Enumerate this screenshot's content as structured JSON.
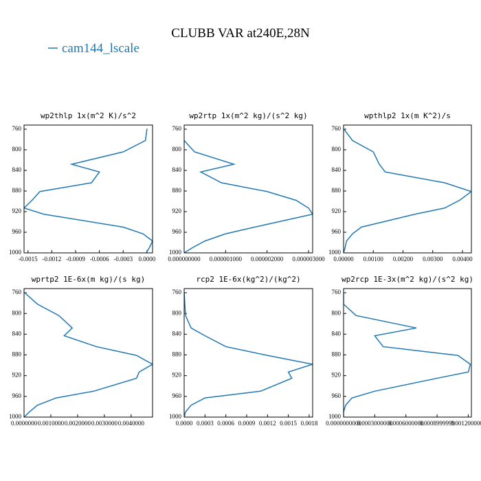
{
  "title": "CLUBB VAR at240E,28N",
  "chart_data": [
    {
      "type": "line",
      "title": "wp2thlp  1x(m^2 K)/s^2",
      "levels": [
        759,
        782,
        804,
        828,
        843,
        864,
        881,
        898,
        913,
        925,
        950,
        963,
        977,
        990,
        1000
      ],
      "series": [
        {
          "name": "cam144_lscale",
          "color": "#1f77b4",
          "values": [
            0.0,
            -2e-05,
            -0.0003,
            -0.00095,
            -0.0006,
            -0.0007,
            -0.00135,
            -0.00145,
            -0.00155,
            -0.0013,
            -0.0003,
            -5e-05,
            7e-05,
            3e-05,
            -1e-05
          ]
        }
      ],
      "xlim": [
        -0.00155,
        7e-05
      ],
      "xticks": [
        -0.0015,
        -0.0012,
        -0.0009,
        -0.0006,
        -0.0003,
        {
          "value": 0,
          "label": "0.0000"
        }
      ],
      "ylim": [
        1000,
        752
      ],
      "yticks": [
        760,
        800,
        840,
        880,
        920,
        960,
        1000
      ]
    },
    {
      "type": "line",
      "title": "wp2rtp  1x(m^2 kg)/(s^2 kg)",
      "levels": [
        759,
        782,
        804,
        828,
        843,
        864,
        881,
        898,
        913,
        925,
        950,
        963,
        977,
        990,
        1000
      ],
      "series": [
        {
          "color": "#1f77b4",
          "values": [
            null,
            0.0,
            2.5e-07,
            1.2e-06,
            4e-07,
            9e-07,
            2e-06,
            2.7e-06,
            3e-06,
            3.1e-06,
            1.7e-06,
            1e-06,
            5e-07,
            2e-07,
            0.0
          ]
        }
      ],
      "xlim": [
        0,
        3.1e-06
      ],
      "xticks": [
        {
          "value": 0,
          "label": "0.000000000"
        },
        {
          "value": 1e-06,
          "label": "0.000001000"
        },
        {
          "value": 2e-06,
          "label": "0.000002000"
        },
        {
          "value": 3e-06,
          "label": "0.000003000"
        }
      ],
      "ylim": [
        1000,
        752
      ],
      "yticks": [
        760,
        800,
        840,
        880,
        920,
        960,
        1000
      ]
    },
    {
      "type": "line",
      "title": "wpthlp2  1x(m K^2)/s",
      "levels": [
        759,
        782,
        804,
        828,
        843,
        864,
        881,
        898,
        913,
        925,
        950,
        963,
        977,
        990,
        1000
      ],
      "series": [
        {
          "color": "#1f77b4",
          "values": [
            0.0,
            0.0003,
            0.001,
            0.0012,
            0.0014,
            0.0034,
            0.0043,
            0.0039,
            0.0034,
            0.0024,
            0.0006,
            0.0003,
            0.0001,
            5e-05,
            0.0
          ]
        }
      ],
      "xlim": [
        0,
        0.0043
      ],
      "xticks": [
        {
          "value": 0,
          "label": "0.00000"
        },
        {
          "value": 0.001,
          "label": "0.00100"
        },
        {
          "value": 0.002,
          "label": "0.00200"
        },
        {
          "value": 0.003,
          "label": "0.00300"
        },
        {
          "value": 0.004,
          "label": "0.00400"
        }
      ],
      "ylim": [
        1000,
        752
      ],
      "yticks": [
        760,
        800,
        840,
        880,
        920,
        960,
        1000
      ]
    },
    {
      "type": "line",
      "title": "wprtp2  1E-6x(m kg)/(s kg)",
      "levels": [
        759,
        782,
        804,
        828,
        843,
        864,
        881,
        898,
        913,
        925,
        950,
        963,
        977,
        990,
        1000
      ],
      "series": [
        {
          "color": "#1f77b4",
          "values": [
            0.0,
            0.0005,
            0.0013,
            0.0018,
            0.0015,
            0.0027,
            0.0042,
            0.0048,
            0.0043,
            0.0042,
            0.0026,
            0.0012,
            0.0005,
            0.0002,
            0.0
          ]
        }
      ],
      "xlim": [
        0,
        0.0048
      ],
      "xticks": [
        {
          "value": 0,
          "label": "0.0000000"
        },
        {
          "value": 0.001,
          "label": "0.0010000"
        },
        {
          "value": 0.002,
          "label": "0.0020000"
        },
        {
          "value": 0.003,
          "label": "0.0030000"
        },
        {
          "value": 0.004,
          "label": "0.0040000"
        }
      ],
      "ylim": [
        1000,
        752
      ],
      "yticks": [
        760,
        800,
        840,
        880,
        920,
        960,
        1000
      ]
    },
    {
      "type": "line",
      "title": "rcp2  1E-6x(kg^2)/(kg^2)",
      "levels": [
        759,
        782,
        804,
        828,
        843,
        864,
        881,
        898,
        913,
        925,
        950,
        963,
        977,
        990,
        1000
      ],
      "series": [
        {
          "color": "#1f77b4",
          "values": [
            0.0,
            1e-05,
            2e-05,
            0.0001,
            0.0003,
            0.0006,
            0.0012,
            0.00185,
            0.0015,
            0.00155,
            0.0011,
            0.0003,
            0.0001,
            2e-05,
            0.0
          ]
        }
      ],
      "xlim": [
        0,
        0.00185
      ],
      "xticks": [
        {
          "value": 0,
          "label": "0.0000"
        },
        0.0003,
        0.0006,
        0.0009,
        0.0012,
        0.0015,
        0.0018
      ],
      "ylim": [
        1000,
        752
      ],
      "yticks": [
        760,
        800,
        840,
        880,
        920,
        960,
        1000
      ]
    },
    {
      "type": "line",
      "title": "wp2rcp  1E-3x(m^2 kg)/(s^2 kg)",
      "levels": [
        759,
        782,
        804,
        828,
        843,
        864,
        881,
        898,
        913,
        925,
        950,
        963,
        977,
        990,
        1000
      ],
      "series": [
        {
          "color": "#1f77b4",
          "values": [
            0.0,
            0.0,
            0.00012,
            0.0007,
            0.0003,
            0.00038,
            0.0011,
            0.00122,
            0.0012,
            0.0009,
            0.0003,
            8e-05,
            2e-05,
            0.0,
            0.0
          ]
        }
      ],
      "xlim": [
        0,
        0.00123
      ],
      "xticks": [
        {
          "value": 0,
          "label": "0.0000000000"
        },
        {
          "value": 0.0003,
          "label": "0.0003000000"
        },
        {
          "value": 0.0006,
          "label": "0.0006000000"
        },
        {
          "value": 0.0009,
          "label": "0.0008999999"
        },
        {
          "value": 0.0012,
          "label": "0.0012000001"
        }
      ],
      "ylim": [
        1000,
        752
      ],
      "yticks": [
        760,
        800,
        840,
        880,
        920,
        960,
        1000
      ]
    }
  ]
}
